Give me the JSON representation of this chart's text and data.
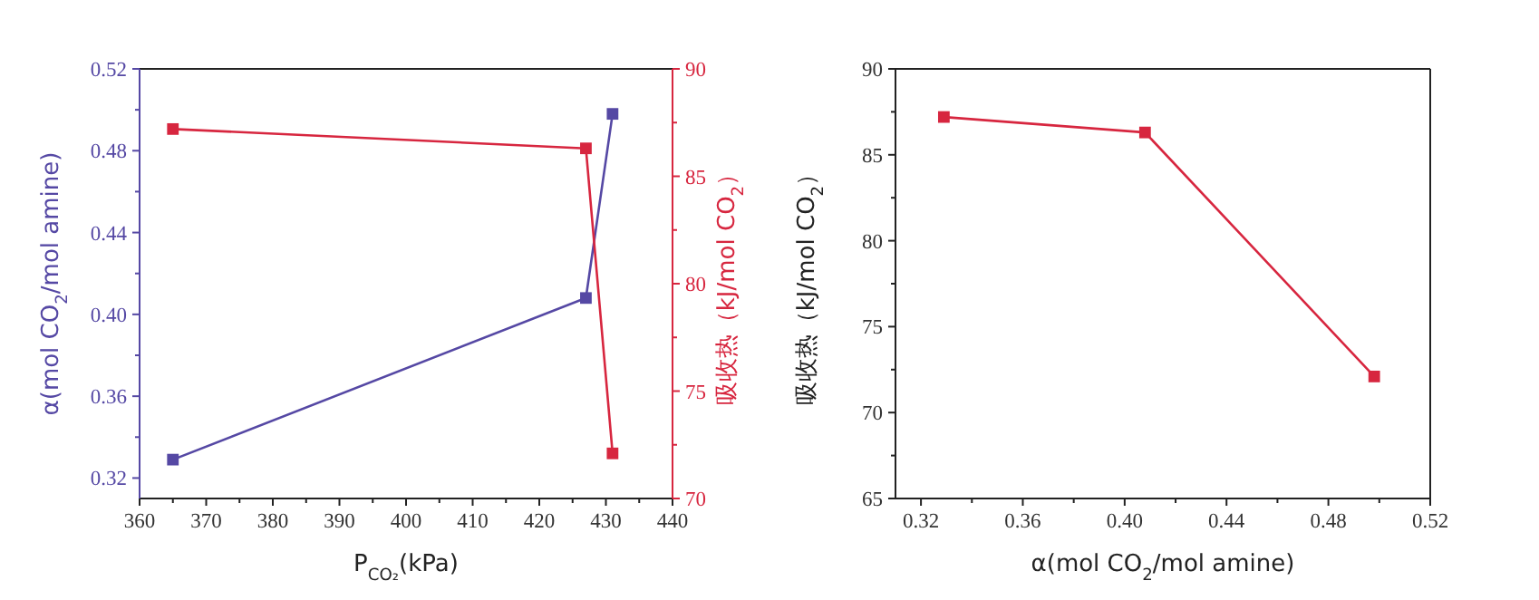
{
  "chart_data": [
    {
      "type": "line",
      "xlabel": "P$_{CO₂}$(kPa)",
      "ylabel": "α(mol CO$_{2}$/mol amine)",
      "y2label": "吸收热（kJ/mol CO$_{2}$）",
      "x": [
        365,
        427,
        431
      ],
      "marker": "square",
      "series": [
        {
          "color": "#5548a4",
          "values": [
            0.329,
            0.408,
            0.498
          ]
        },
        {
          "color": "#d7263f",
          "values": [
            87.2,
            86.3,
            72.1
          ],
          "axis": "y2"
        }
      ],
      "xlim": [
        360,
        440
      ],
      "xticks": [
        360,
        {
          "value": 365,
          "label": null
        },
        370,
        {
          "value": 375,
          "label": null
        },
        380,
        {
          "value": 385,
          "label": null
        },
        390,
        {
          "value": 395,
          "label": null
        },
        400,
        {
          "value": 405,
          "label": null
        },
        410,
        {
          "value": 415,
          "label": null
        },
        420,
        {
          "value": 425,
          "label": null
        },
        430,
        {
          "value": 435,
          "label": null
        },
        440
      ],
      "ylim": [
        0.31,
        0.52
      ],
      "yticks": [
        {
          "value": 0.32,
          "label": "0.32"
        },
        {
          "value": 0.34,
          "label": null
        },
        {
          "value": 0.36,
          "label": "0.36"
        },
        {
          "value": 0.38,
          "label": null
        },
        {
          "value": 0.4,
          "label": "0.40"
        },
        {
          "value": 0.42,
          "label": null
        },
        {
          "value": 0.44,
          "label": "0.44"
        },
        {
          "value": 0.46,
          "label": null
        },
        {
          "value": 0.48,
          "label": "0.48"
        },
        {
          "value": 0.5,
          "label": null
        },
        {
          "value": 0.52,
          "label": "0.52"
        }
      ],
      "y2lim": [
        70,
        90
      ],
      "y2ticks": [
        70,
        {
          "value": 72.5,
          "label": null
        },
        75,
        {
          "value": 77.5,
          "label": null
        },
        80,
        {
          "value": 82.5,
          "label": null
        },
        85,
        {
          "value": 87.5,
          "label": null
        },
        90
      ]
    },
    {
      "type": "line",
      "xlabel": "α(mol CO$_{2}$/mol amine)",
      "ylabel": "吸收热（kJ/mol CO$_{2}$）",
      "x": [
        0.329,
        0.408,
        0.498
      ],
      "marker": "square",
      "series": [
        {
          "color": "#d7263f",
          "values": [
            87.2,
            86.3,
            72.1
          ]
        }
      ],
      "xlim": [
        0.31,
        0.52
      ],
      "xticks": [
        {
          "value": 0.32,
          "label": "0.32"
        },
        {
          "value": 0.34,
          "label": null
        },
        {
          "value": 0.36,
          "label": "0.36"
        },
        {
          "value": 0.38,
          "label": null
        },
        {
          "value": 0.4,
          "label": "0.40"
        },
        {
          "value": 0.42,
          "label": null
        },
        {
          "value": 0.44,
          "label": "0.44"
        },
        {
          "value": 0.46,
          "label": null
        },
        {
          "value": 0.48,
          "label": "0.48"
        },
        {
          "value": 0.5,
          "label": null
        },
        {
          "value": 0.52,
          "label": "0.52"
        }
      ],
      "ylim": [
        65,
        90
      ],
      "yticks": [
        65,
        {
          "value": 67.5,
          "label": null
        },
        70,
        {
          "value": 72.5,
          "label": null
        },
        75,
        {
          "value": 77.5,
          "label": null
        },
        80,
        {
          "value": 82.5,
          "label": null
        },
        85,
        {
          "value": 87.5,
          "label": null
        },
        90
      ]
    }
  ]
}
